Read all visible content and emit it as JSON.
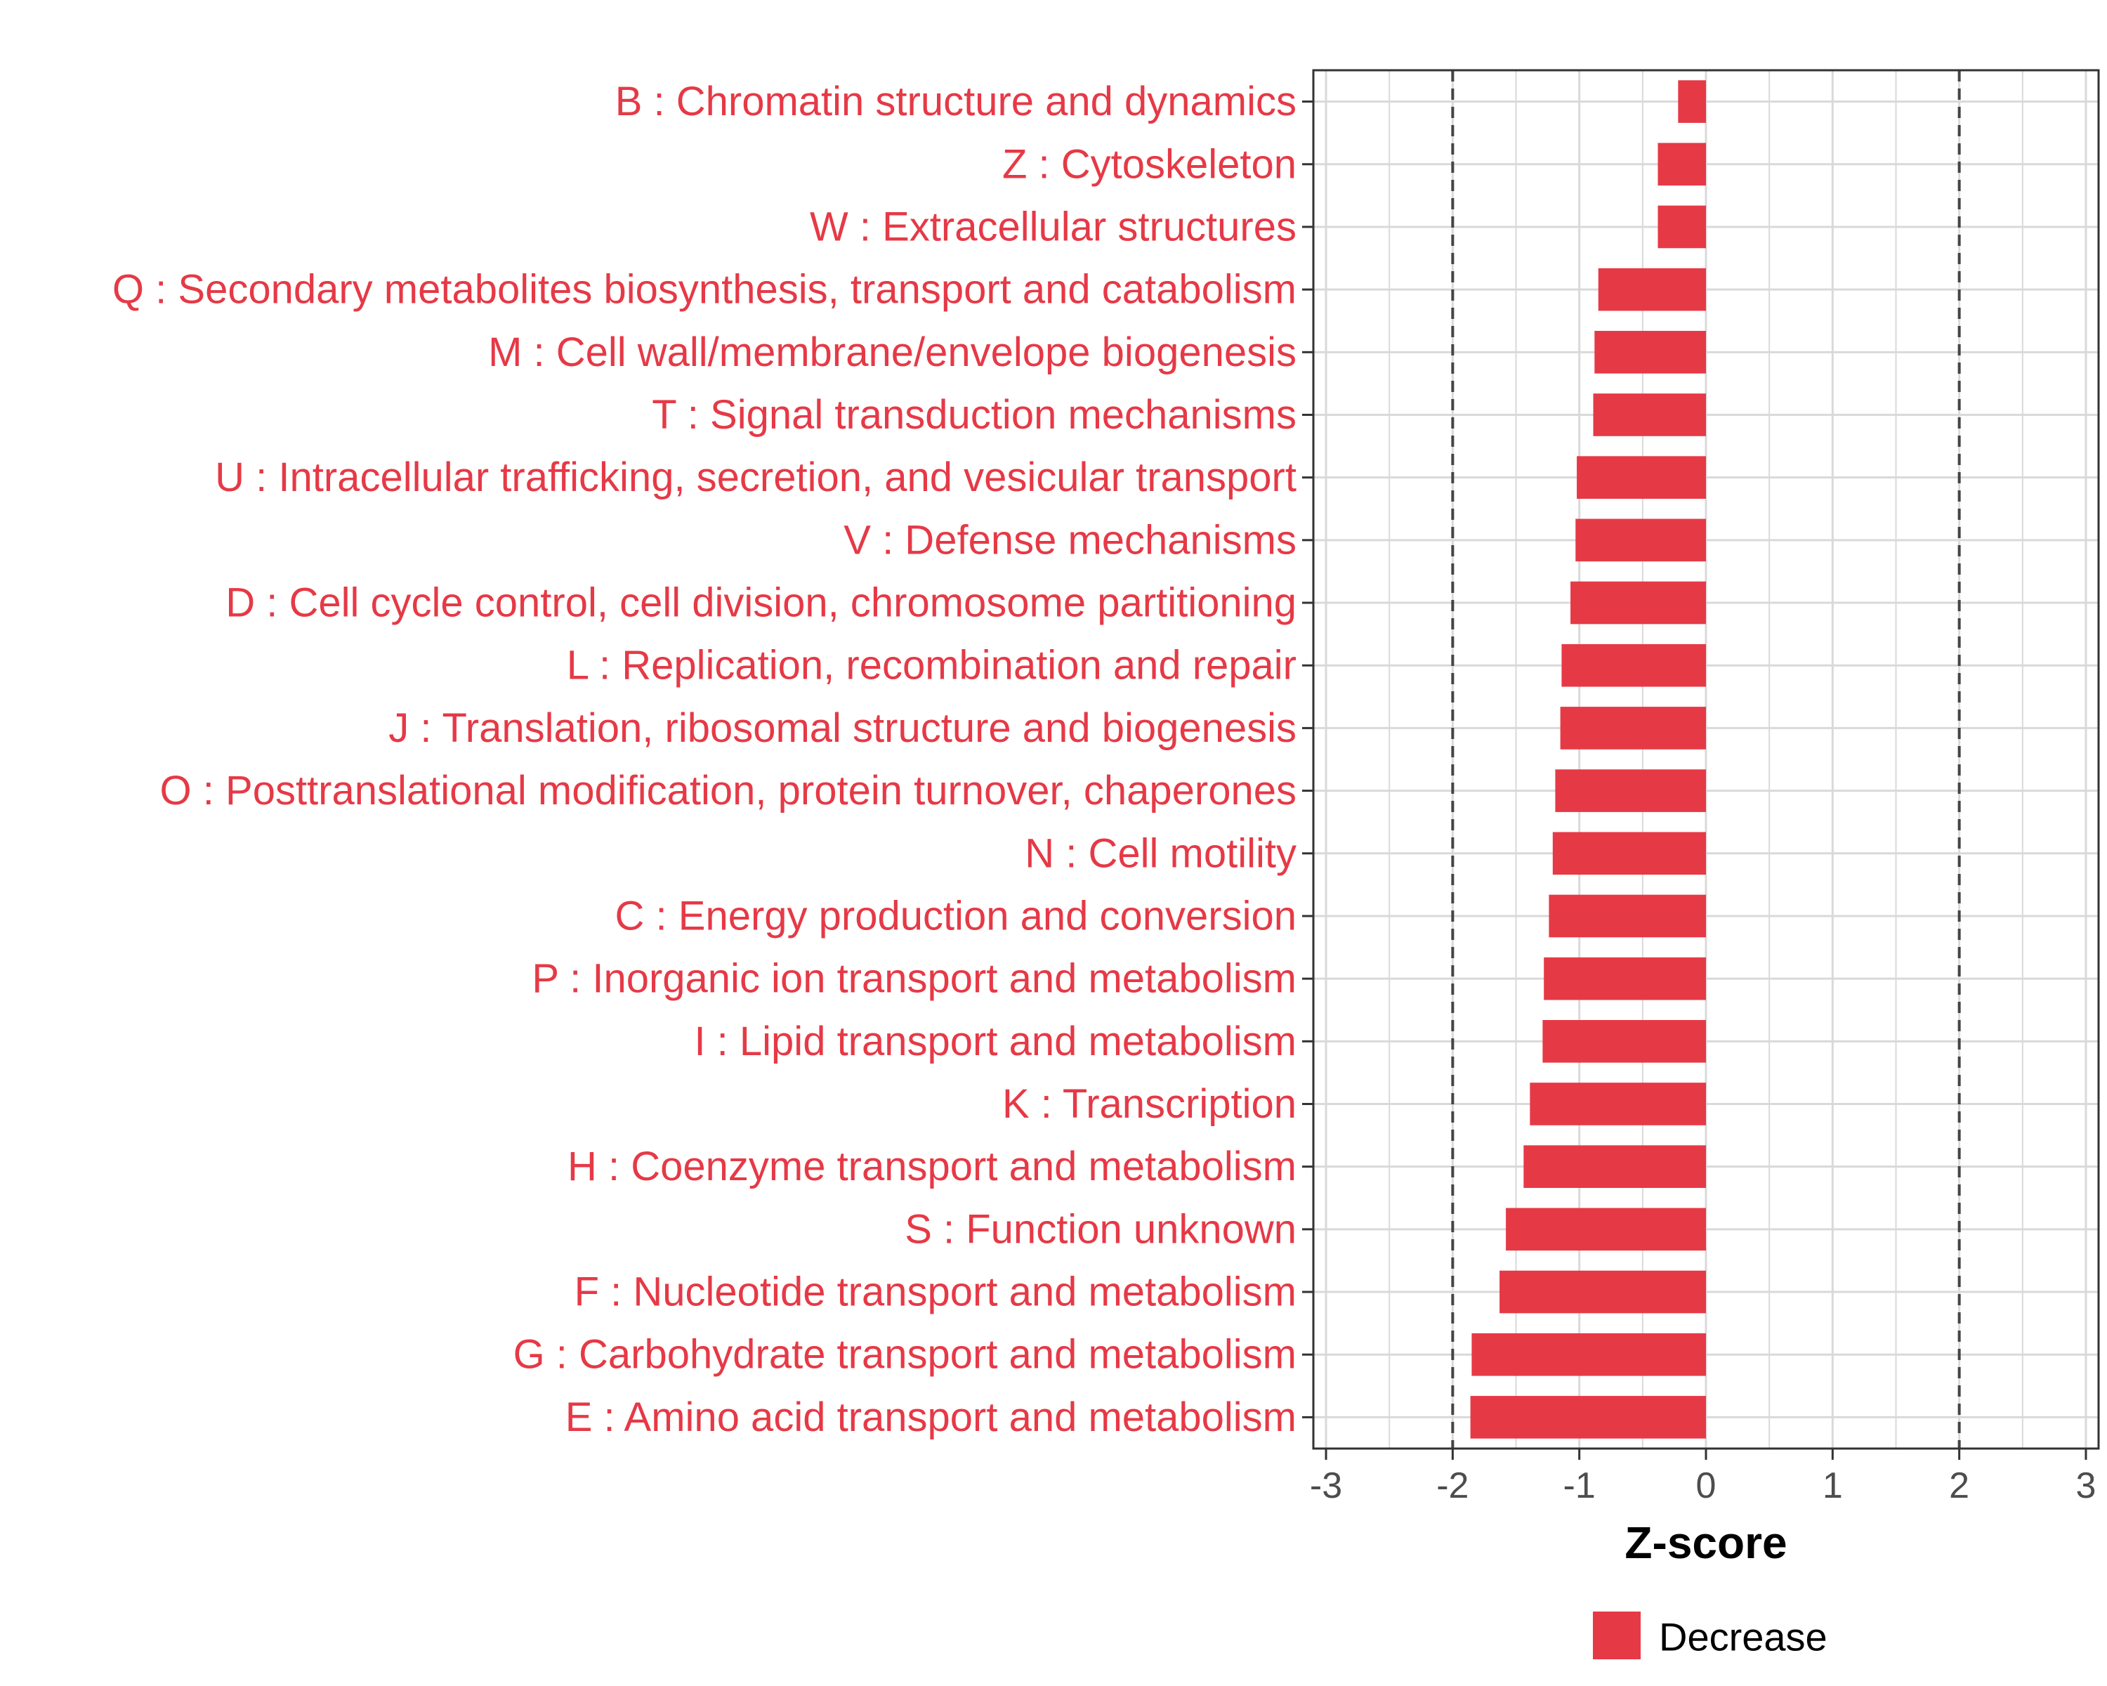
{
  "chart_data": {
    "type": "bar",
    "orientation": "horizontal",
    "categories": [
      "B : Chromatin structure and dynamics",
      "Z : Cytoskeleton",
      "W : Extracellular structures",
      "Q : Secondary metabolites biosynthesis, transport and catabolism",
      "M : Cell wall/membrane/envelope biogenesis",
      "T : Signal transduction mechanisms",
      "U : Intracellular trafficking, secretion, and vesicular transport",
      "V : Defense mechanisms",
      "D : Cell cycle control, cell division, chromosome partitioning",
      "L : Replication, recombination and repair",
      "J : Translation, ribosomal structure and biogenesis",
      "O : Posttranslational modification, protein turnover, chaperones",
      "N : Cell motility",
      "C : Energy production and conversion",
      "P : Inorganic ion transport and metabolism",
      "I : Lipid transport and metabolism",
      "K : Transcription",
      "H : Coenzyme transport and metabolism",
      "S : Function unknown",
      "F : Nucleotide transport and metabolism",
      "G : Carbohydrate transport and metabolism",
      "E : Amino acid transport and metabolism"
    ],
    "values": [
      -0.22,
      -0.38,
      -0.38,
      -0.85,
      -0.88,
      -0.89,
      -1.02,
      -1.03,
      -1.07,
      -1.14,
      -1.15,
      -1.19,
      -1.21,
      -1.24,
      -1.28,
      -1.29,
      -1.39,
      -1.44,
      -1.58,
      -1.63,
      -1.85,
      -1.86
    ],
    "xlabel": "Z-score",
    "ylabel": "",
    "xlim": [
      -3.1,
      3.1
    ],
    "xticks": [
      "-3",
      "-2",
      "-1",
      "0",
      "1",
      "2",
      "3"
    ],
    "threshold_lines": [
      -2,
      2
    ],
    "grid": true,
    "legend": {
      "position": "bottom",
      "entries": [
        {
          "name": "Decrease",
          "color": "#e63946"
        }
      ]
    },
    "colors": {
      "bar": "#e63946",
      "label": "#e63946",
      "grid": "#d9d9d9",
      "border": "#333333",
      "threshold": "#444444"
    }
  }
}
